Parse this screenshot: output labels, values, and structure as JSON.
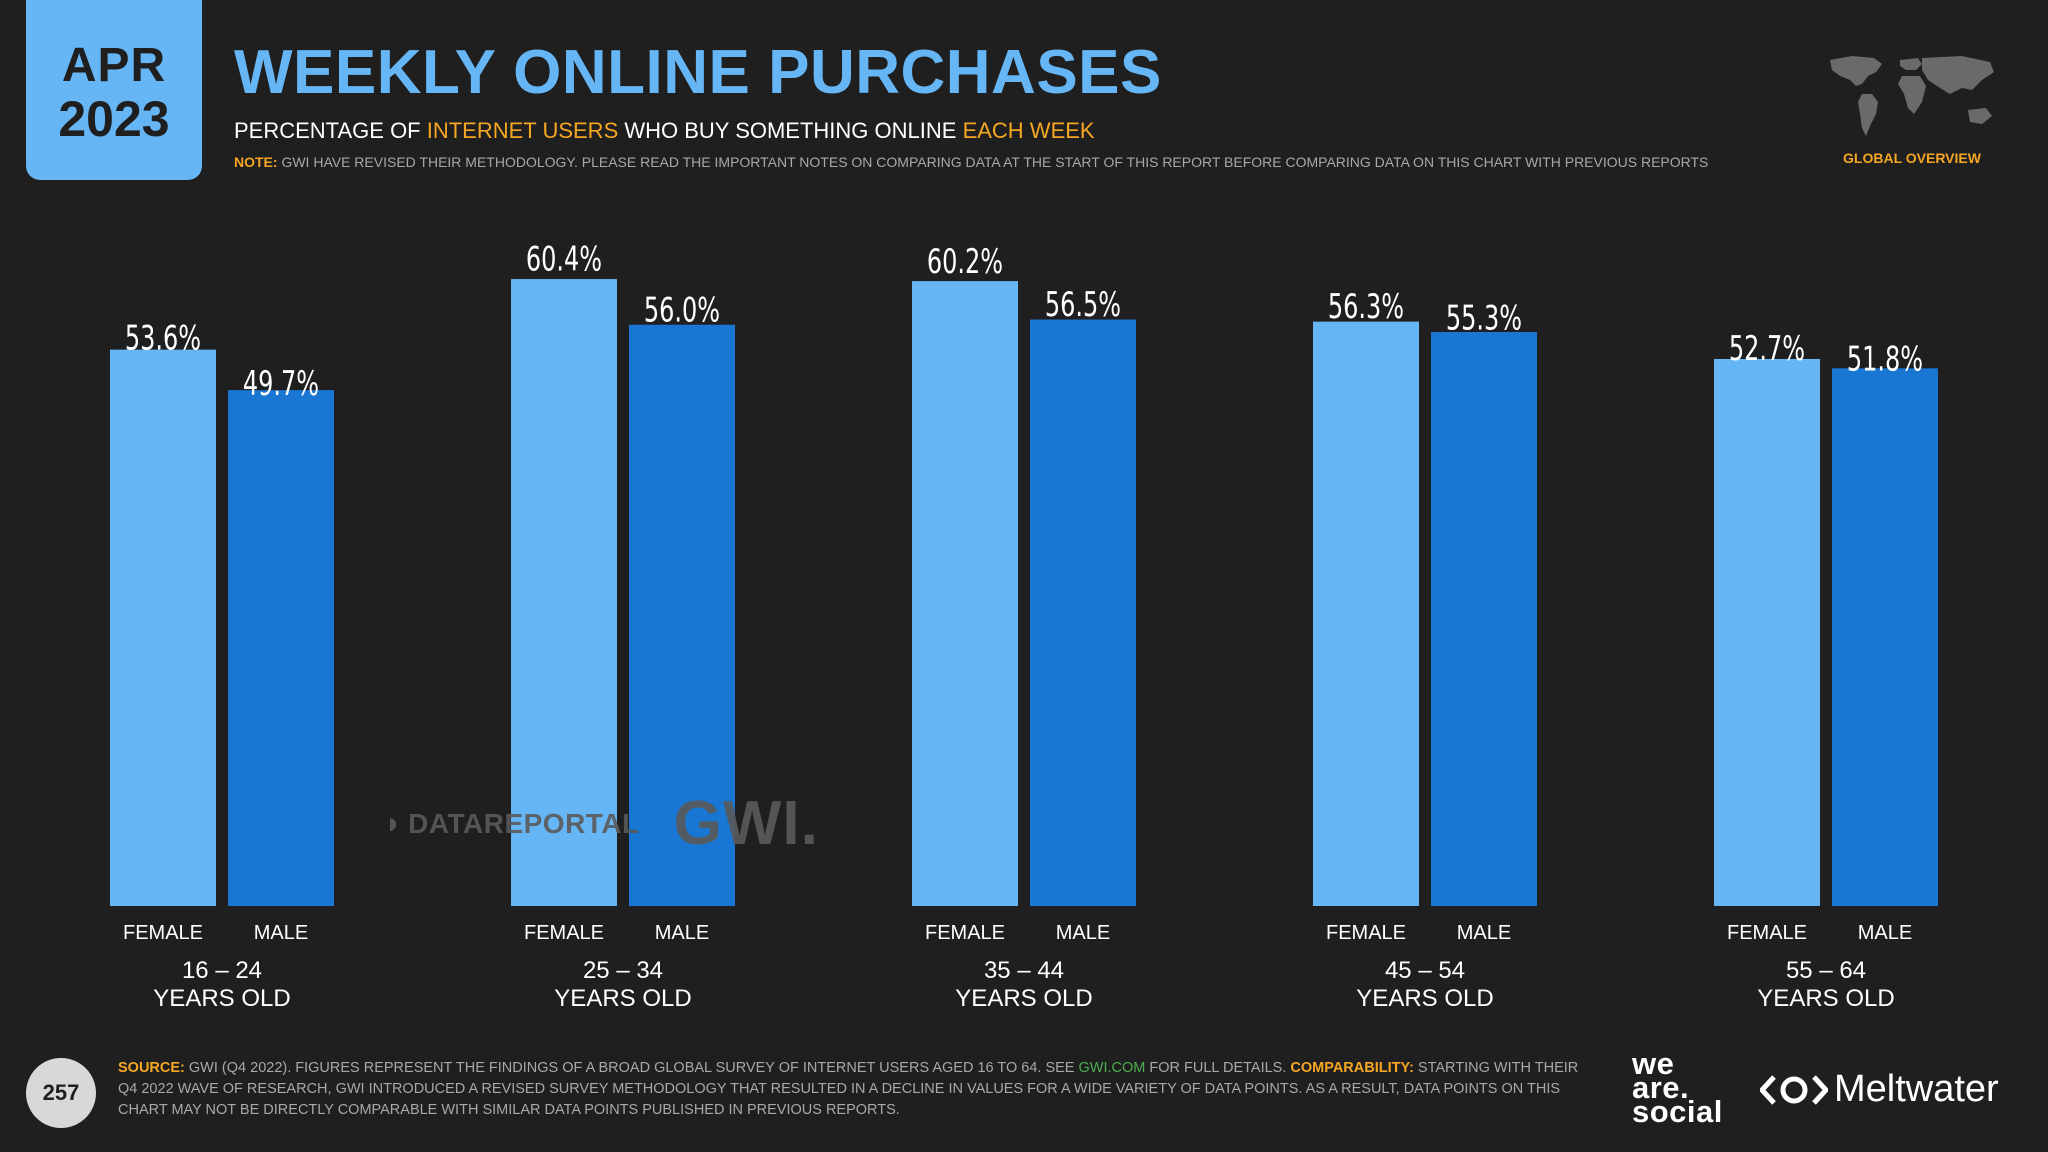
{
  "header": {
    "date_month": "APR",
    "date_year": "2023",
    "title": "WEEKLY ONLINE PURCHASES",
    "subtitle_1": "PERCENTAGE OF ",
    "subtitle_hl1": "INTERNET USERS",
    "subtitle_2": " WHO BUY SOMETHING ONLINE ",
    "subtitle_hl2": "EACH WEEK",
    "note_label": "NOTE:",
    "note_text": " GWI HAVE REVISED THEIR METHODOLOGY. PLEASE READ THE IMPORTANT NOTES ON COMPARING DATA AT THE START OF THIS REPORT BEFORE COMPARING DATA ON THIS CHART WITH PREVIOUS REPORTS",
    "region_label": "GLOBAL OVERVIEW"
  },
  "chart_data": {
    "type": "bar",
    "categories": [
      [
        "16 – 24",
        "YEARS OLD"
      ],
      [
        "25 – 34",
        "YEARS OLD"
      ],
      [
        "35 – 44",
        "YEARS OLD"
      ],
      [
        "45 – 54",
        "YEARS OLD"
      ],
      [
        "55 – 64",
        "YEARS OLD"
      ]
    ],
    "series": [
      {
        "name": "FEMALE",
        "color": "#66b6f6",
        "values": [
          53.6,
          60.4,
          60.2,
          56.3,
          52.7
        ]
      },
      {
        "name": "MALE",
        "color": "#1976d2",
        "values": [
          49.7,
          56.0,
          56.5,
          55.3,
          51.8
        ]
      }
    ],
    "value_suffix": "%",
    "grid": false,
    "legend": "none"
  },
  "watermark": {
    "datareportal": "DATAREPORTAL",
    "gwi": "GWI."
  },
  "footer": {
    "page_number": "257",
    "source_label": "SOURCE:",
    "source_text_1": " GWI (Q4 2022). FIGURES REPRESENT THE FINDINGS OF A BROAD GLOBAL SURVEY OF INTERNET USERS AGED 16 TO 64. SEE ",
    "source_link": "GWI.COM",
    "source_text_2": " FOR FULL DETAILS. ",
    "comparability_label": "COMPARABILITY:",
    "comparability_text": " STARTING WITH THEIR Q4 2022 WAVE OF RESEARCH, GWI INTRODUCED A REVISED SURVEY METHODOLOGY THAT RESULTED IN A DECLINE IN VALUES FOR A WIDE VARIETY OF DATA POINTS. AS A RESULT, DATA POINTS ON THIS CHART MAY NOT BE DIRECTLY COMPARABLE WITH SIMILAR DATA POINTS PUBLISHED IN PREVIOUS REPORTS.",
    "brand_was": [
      "we",
      "are.",
      "social"
    ],
    "brand_meltwater": "Meltwater"
  }
}
